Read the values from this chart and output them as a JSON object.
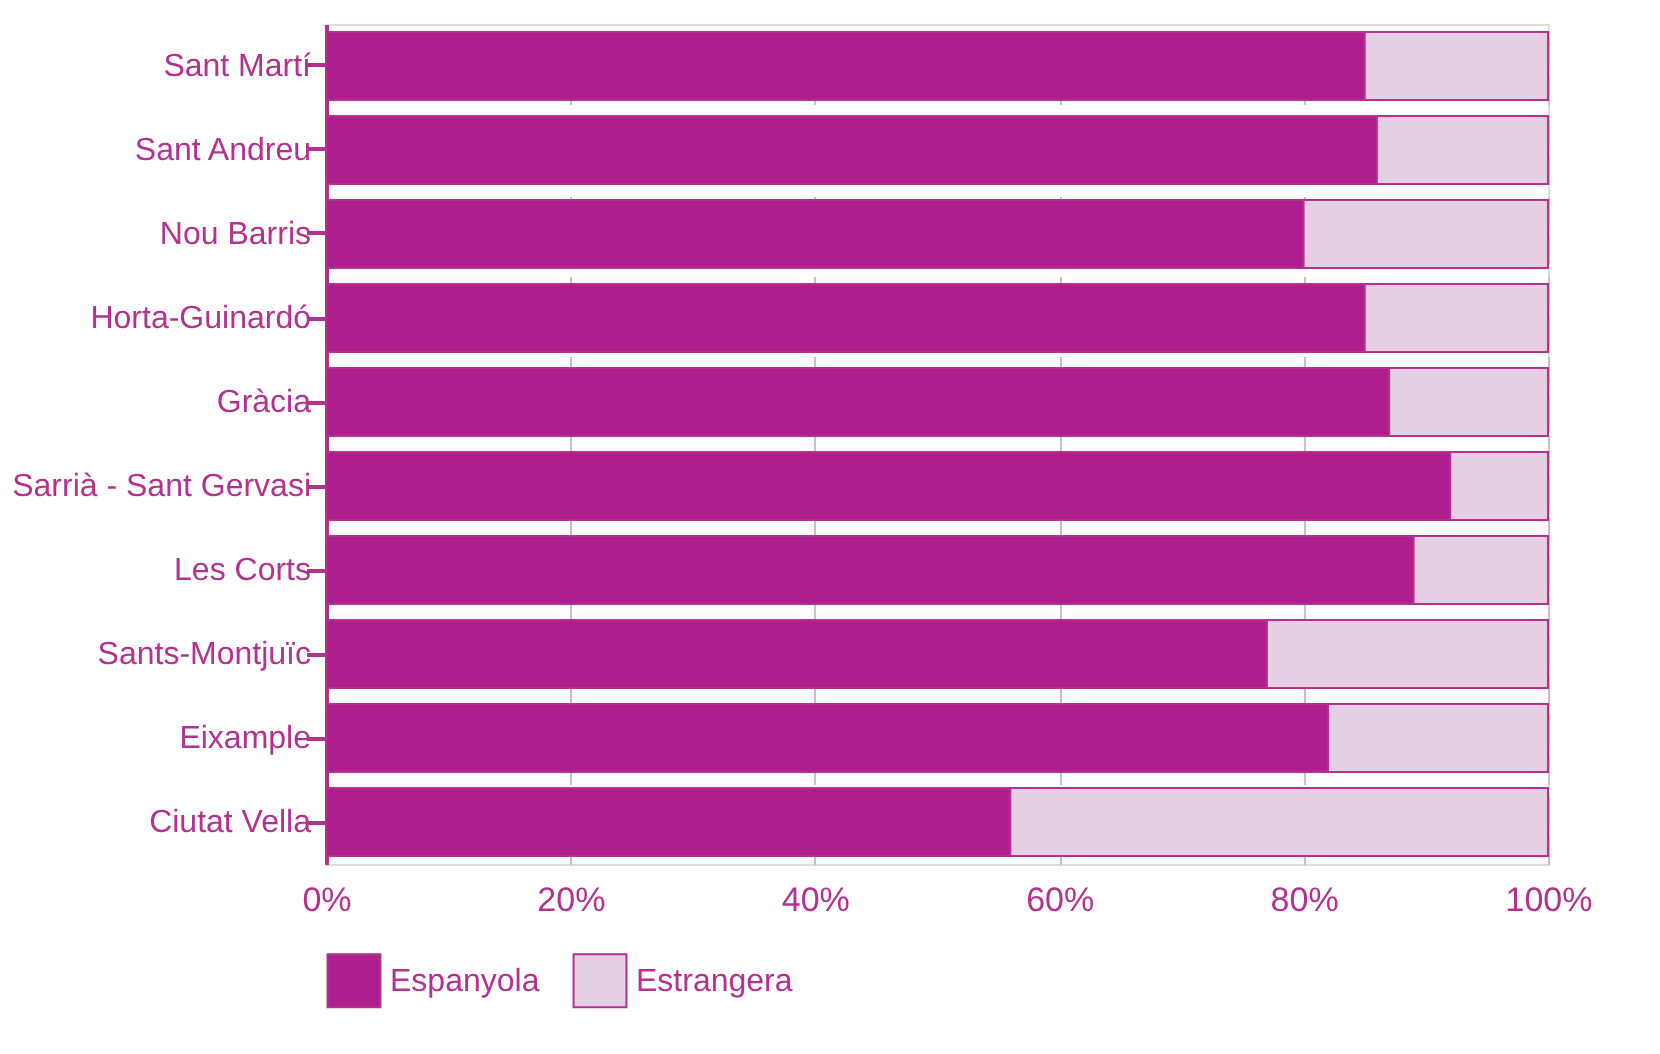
{
  "chart_data": {
    "type": "bar",
    "orientation": "horizontal",
    "stacked": true,
    "categories": [
      "Sant Martí",
      "Sant Andreu",
      "Nou Barris",
      "Horta-Guinardó",
      "Gràcia",
      "Sarrià - Sant Gervasi",
      "Les Corts",
      "Sants-Montjuïc",
      "Eixample",
      "Ciutat Vella"
    ],
    "series": [
      {
        "name": "Espanyola",
        "color": "#ac1f8c",
        "values": [
          85,
          86,
          80,
          85,
          87,
          92,
          89,
          77,
          82,
          56
        ]
      },
      {
        "name": "Estrangera",
        "color": "#e6cfe3",
        "values": [
          15,
          14,
          20,
          15,
          13,
          8,
          11,
          23,
          18,
          44
        ]
      }
    ],
    "xlim": [
      0,
      100
    ],
    "xticks": [
      {
        "value": 0,
        "label": "0%"
      },
      {
        "value": 20,
        "label": "20%"
      },
      {
        "value": 40,
        "label": "40%"
      },
      {
        "value": 60,
        "label": "60%"
      },
      {
        "value": 80,
        "label": "80%"
      },
      {
        "value": 100,
        "label": "100%"
      }
    ],
    "grid": "x",
    "legend": "bottom"
  }
}
